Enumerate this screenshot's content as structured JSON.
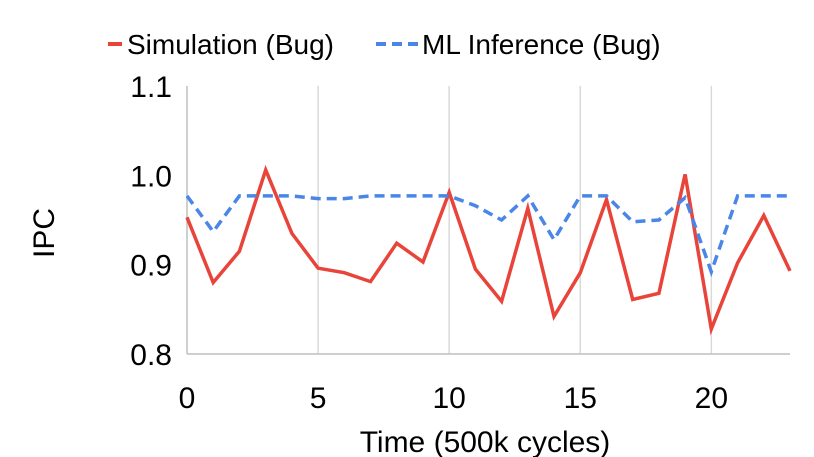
{
  "chart_data": {
    "type": "line",
    "title": "",
    "xlabel": "Time (500k cycles)",
    "ylabel": "IPC",
    "xlim": [
      0,
      23
    ],
    "ylim": [
      0.8,
      1.1
    ],
    "x_ticks": [
      0,
      5,
      10,
      15,
      20
    ],
    "x_tick_labels": [
      "0",
      "5",
      "10",
      "15",
      "20"
    ],
    "y_ticks": [
      0.8,
      0.9,
      1.0,
      1.1
    ],
    "y_tick_labels": [
      "0.8",
      "0.9",
      "1.0",
      "1.1"
    ],
    "grid": "vertical",
    "legend_position": "top",
    "x": [
      0,
      1,
      2,
      3,
      4,
      5,
      6,
      7,
      8,
      9,
      10,
      11,
      12,
      13,
      14,
      15,
      16,
      17,
      18,
      19,
      20,
      21,
      22,
      23
    ],
    "series": [
      {
        "name": "Simulation (Bug)",
        "color": "#E8443A",
        "style": "solid",
        "values": [
          0.953,
          0.88,
          0.915,
          1.006,
          0.935,
          0.896,
          0.891,
          0.881,
          0.924,
          0.903,
          0.981,
          0.895,
          0.859,
          0.963,
          0.842,
          0.891,
          0.973,
          0.861,
          0.868,
          1.001,
          0.828,
          0.902,
          0.955,
          0.893
        ]
      },
      {
        "name": "ML Inference (Bug)",
        "color": "#4A86E8",
        "style": "dashed",
        "values": [
          0.977,
          0.937,
          0.977,
          0.977,
          0.977,
          0.974,
          0.974,
          0.977,
          0.977,
          0.977,
          0.977,
          0.966,
          0.95,
          0.977,
          0.928,
          0.977,
          0.977,
          0.948,
          0.95,
          0.975,
          0.892,
          0.977,
          0.977,
          0.977
        ]
      }
    ]
  }
}
